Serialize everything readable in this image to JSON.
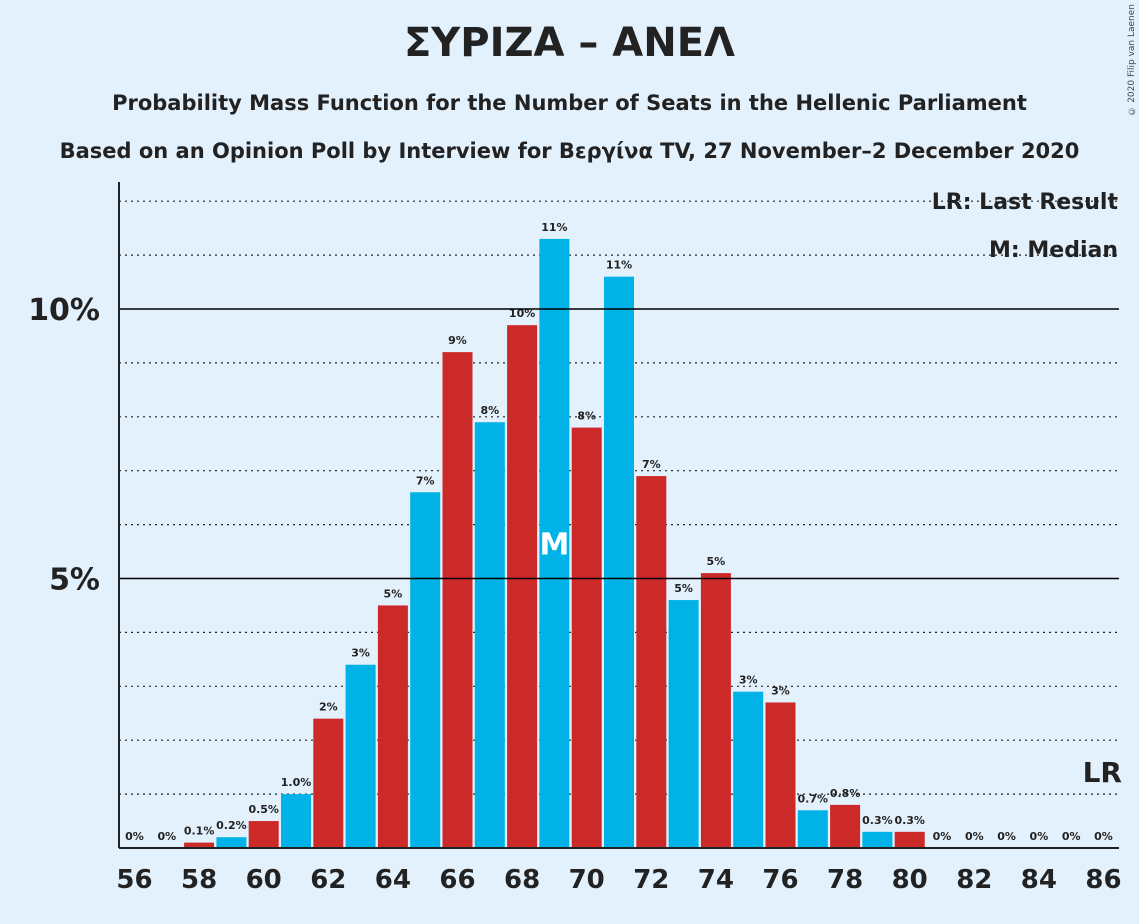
{
  "title": "ΣΥΡΙΖΑ – ΑΝΕΛ",
  "subtitle": "Probability Mass Function for the Number of Seats in the Hellenic Parliament",
  "subtitle2": "Based on an Opinion Poll by Interview for Βεργίνα TV, 27 November–2 December 2020",
  "copyright": "© 2020 Filip van Laenen",
  "colors": {
    "blue": "#00b2e5",
    "red": "#cc2929",
    "background": "#e3f1fd"
  },
  "chart_data": {
    "type": "bar",
    "x": [
      56,
      57,
      58,
      59,
      60,
      61,
      62,
      63,
      64,
      65,
      66,
      67,
      68,
      69,
      70,
      71,
      72,
      73,
      74,
      75,
      76,
      77,
      78,
      79,
      80,
      81,
      82,
      83,
      84,
      85,
      86
    ],
    "values": [
      0,
      0,
      0.1,
      0.2,
      0.5,
      1.0,
      2.4,
      3.4,
      4.5,
      6.6,
      9.2,
      7.9,
      9.7,
      11.3,
      7.8,
      10.6,
      6.9,
      4.6,
      5.1,
      2.9,
      2.7,
      0.7,
      0.8,
      0.3,
      0.3,
      0,
      0,
      0,
      0,
      0,
      0
    ],
    "labels": [
      "0%",
      "0%",
      "0.1%",
      "0.2%",
      "0.5%",
      "1.0%",
      "2%",
      "3%",
      "5%",
      "7%",
      "9%",
      "8%",
      "10%",
      "11%",
      "8%",
      "11%",
      "7%",
      "5%",
      "5%",
      "3%",
      "3%",
      "0.7%",
      "0.8%",
      "0.3%",
      "0.3%",
      "0%",
      "0%",
      "0%",
      "0%",
      "0%",
      "0%"
    ],
    "bar_colors": [
      "blue",
      "red",
      "red",
      "blue",
      "red",
      "blue",
      "red",
      "blue",
      "red",
      "blue",
      "red",
      "blue",
      "red",
      "blue",
      "red",
      "blue",
      "red",
      "blue",
      "red",
      "blue",
      "red",
      "blue",
      "red",
      "blue",
      "red",
      "blue",
      "red",
      "blue",
      "red",
      "blue",
      "red"
    ],
    "x_tick_labels": [
      "56",
      "58",
      "60",
      "62",
      "64",
      "66",
      "68",
      "70",
      "72",
      "74",
      "76",
      "78",
      "80",
      "82",
      "84",
      "86"
    ],
    "y_ticks": [
      {
        "value": 5,
        "label": "5%"
      },
      {
        "value": 10,
        "label": "10%"
      }
    ],
    "ylim": [
      0,
      12.3
    ],
    "median": 69,
    "median_label": "M",
    "last_result": 86,
    "last_result_label": "LR",
    "legend": [
      "LR: Last Result",
      "M: Median"
    ],
    "grid": "dotted at each 1%, solid at 5% and 10%"
  }
}
